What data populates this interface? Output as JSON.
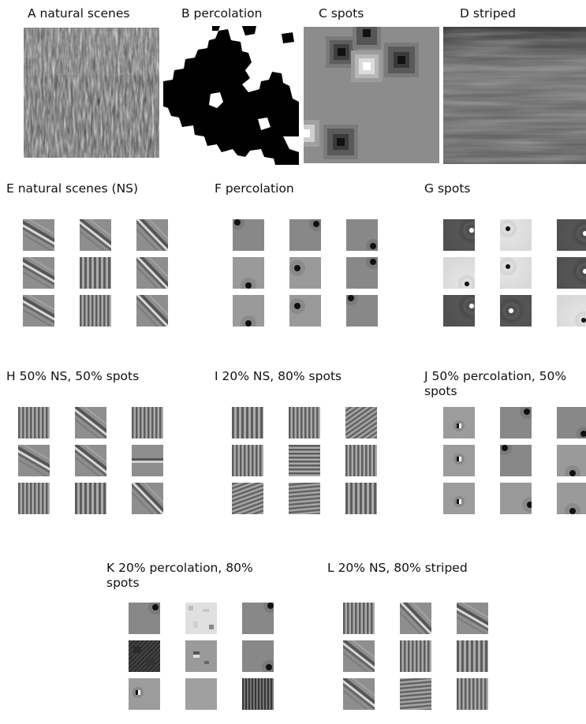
{
  "figure": {
    "top_row": [
      {
        "id": "A",
        "label": "A natural scenes"
      },
      {
        "id": "B",
        "label": "B percolation"
      },
      {
        "id": "C",
        "label": "C spots"
      },
      {
        "id": "D",
        "label": "D striped"
      }
    ],
    "panels": [
      {
        "id": "E",
        "label": "E natural scenes (NS)",
        "tiles": [
          "oriented-edge",
          "oriented-edge",
          "oriented-edge",
          "oriented-edge",
          "vertical-grating",
          "oriented-edge",
          "oriented-edge",
          "vertical-grating",
          "oriented-edge"
        ]
      },
      {
        "id": "F",
        "label": "F percolation",
        "tiles": [
          "corner-blob",
          "corner-blob",
          "corner-blob",
          "edge-blob",
          "edge-blob",
          "corner-blob",
          "edge-blob",
          "edge-blob",
          "corner-blob"
        ]
      },
      {
        "id": "G",
        "label": "G spots",
        "tiles": [
          "center-surround-dark",
          "center-surround-light",
          "center-surround-dark",
          "center-surround-light",
          "center-surround-light",
          "center-surround-dark",
          "center-surround-dark",
          "center-surround-dark",
          "center-surround-light"
        ]
      },
      {
        "id": "H",
        "label": "H 50% NS, 50% spots",
        "tiles": [
          "vertical-grating",
          "oriented-edge",
          "vertical-grating",
          "oriented-edge",
          "oriented-edge",
          "horizontal-edge",
          "vertical-grating",
          "vertical-grating",
          "oriented-edge"
        ]
      },
      {
        "id": "I",
        "label": "I 20% NS, 80% spots",
        "tiles": [
          "vertical-grating",
          "vertical-grating",
          "diagonal-grating",
          "vertical-grating",
          "horizontal-grating",
          "vertical-grating",
          "diagonal-grating",
          "diagonal-grating",
          "vertical-grating"
        ]
      },
      {
        "id": "J",
        "label": "J 50% percolation, 50% spots",
        "tiles": [
          "spot",
          "corner-blob",
          "corner-blob",
          "spot",
          "corner-blob",
          "edge-blob",
          "spot",
          "edge-blob",
          "edge-blob"
        ]
      },
      {
        "id": "K",
        "label": "K 20% percolation, 80% spots",
        "tiles": [
          "corner-blob",
          "noisy-light",
          "corner-blob",
          "noisy-dark",
          "noisy",
          "corner-blob",
          "spot",
          "plain",
          "noisy-grating"
        ]
      },
      {
        "id": "L",
        "label": "L 20% NS, 80% striped",
        "tiles": [
          "vertical-grating",
          "oriented-edge",
          "oriented-edge",
          "oriented-edge",
          "vertical-grating",
          "vertical-grating",
          "oriented-edge",
          "diagonal-grating",
          "vertical-grating"
        ]
      }
    ]
  }
}
